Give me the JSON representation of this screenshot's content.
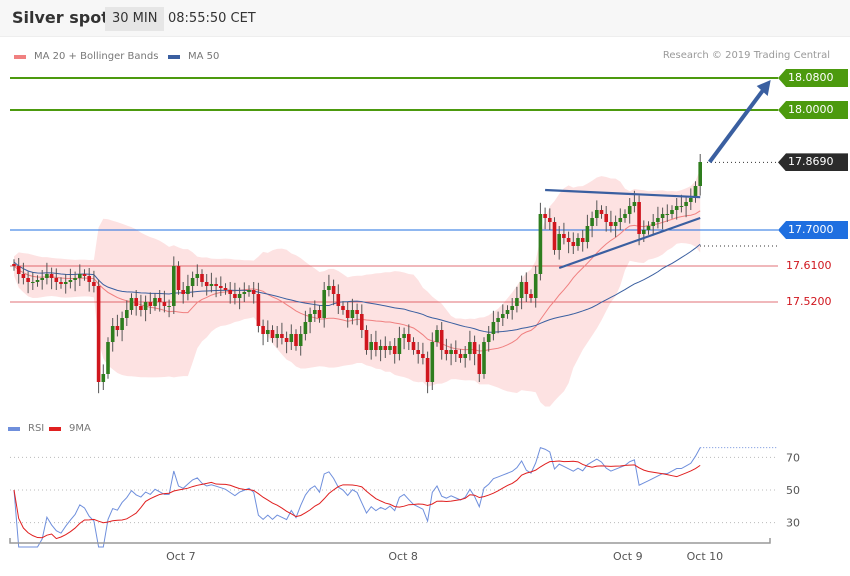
{
  "header": {
    "title": "Silver spot",
    "timeframe": "30 MIN",
    "time": "08:55:50 CET"
  },
  "legend": {
    "bollinger": "MA 20 + Bollinger Bands",
    "ma50": "MA 50",
    "rsi": "RSI",
    "rsi_ma": "9MA"
  },
  "credit": "Research © 2019 Trading Central",
  "colors": {
    "up": "#2e7d1e",
    "down": "#d0161e",
    "band": "#fde2e2",
    "ma20": "#f08080",
    "ma50": "#3a5fa0",
    "target": "#4c9a0e",
    "pivot": "#1f6fe0",
    "support": "#d0161e",
    "current": "#2b2b2b",
    "rsi": "#6f8fdc",
    "rsi_ma": "#e02020"
  },
  "chart_data": [
    {
      "type": "candlestick",
      "title": "Silver spot",
      "interval": "30 MIN",
      "closes": [
        17.61,
        17.59,
        17.58,
        17.57,
        17.57,
        17.575,
        17.58,
        17.59,
        17.58,
        17.57,
        17.565,
        17.57,
        17.575,
        17.58,
        17.59,
        17.585,
        17.57,
        17.56,
        17.32,
        17.34,
        17.42,
        17.46,
        17.45,
        17.48,
        17.5,
        17.53,
        17.51,
        17.5,
        17.52,
        17.51,
        17.53,
        17.52,
        17.51,
        17.51,
        17.61,
        17.55,
        17.54,
        17.56,
        17.58,
        17.59,
        17.57,
        17.56,
        17.565,
        17.56,
        17.555,
        17.55,
        17.54,
        17.53,
        17.54,
        17.545,
        17.55,
        17.54,
        17.46,
        17.44,
        17.45,
        17.43,
        17.44,
        17.43,
        17.42,
        17.44,
        17.41,
        17.44,
        17.47,
        17.49,
        17.5,
        17.48,
        17.55,
        17.56,
        17.54,
        17.51,
        17.5,
        17.48,
        17.5,
        17.49,
        17.45,
        17.4,
        17.42,
        17.4,
        17.41,
        17.4,
        17.41,
        17.39,
        17.43,
        17.44,
        17.42,
        17.4,
        17.39,
        17.38,
        17.32,
        17.42,
        17.45,
        17.4,
        17.39,
        17.4,
        17.39,
        17.38,
        17.39,
        17.42,
        17.39,
        17.34,
        17.42,
        17.44,
        17.47,
        17.48,
        17.49,
        17.5,
        17.51,
        17.53,
        17.57,
        17.54,
        17.53,
        17.59,
        17.74,
        17.73,
        17.72,
        17.65,
        17.69,
        17.68,
        17.67,
        17.66,
        17.68,
        17.67,
        17.71,
        17.73,
        17.75,
        17.74,
        17.72,
        17.71,
        17.72,
        17.73,
        17.74,
        17.76,
        17.77,
        17.69,
        17.7,
        17.71,
        17.72,
        17.73,
        17.74,
        17.74,
        17.75,
        17.76,
        17.76,
        17.77,
        17.78,
        17.81,
        17.87
      ],
      "levels": [
        {
          "value": "18.0800",
          "price": 18.08,
          "kind": "target"
        },
        {
          "value": "18.0000",
          "price": 18.0,
          "kind": "target"
        },
        {
          "value": "17.8690",
          "price": 17.869,
          "kind": "current"
        },
        {
          "value": "17.7000",
          "price": 17.7,
          "kind": "pivot"
        },
        {
          "value": "17.6100",
          "price": 17.61,
          "kind": "support"
        },
        {
          "value": "17.5200",
          "price": 17.52,
          "kind": "support"
        }
      ],
      "trendlines": [
        {
          "from": [
            113,
            17.8
          ],
          "to": [
            146,
            17.782
          ]
        },
        {
          "from": [
            116,
            17.605
          ],
          "to": [
            146,
            17.73
          ]
        }
      ],
      "arrow": {
        "from": [
          148,
          17.87
        ],
        "to": [
          161,
          18.075
        ]
      },
      "overlays": [
        "MA 20 + Bollinger Bands",
        "MA 50"
      ]
    },
    {
      "type": "line",
      "series": [
        {
          "name": "RSI"
        },
        {
          "name": "9MA"
        }
      ],
      "ylim": [
        15,
        80
      ],
      "y_ticks": [
        "70",
        "50",
        "30"
      ],
      "x_ticks": [
        {
          "label": "Oct 7",
          "at_index": 35.5
        },
        {
          "label": "Oct 8",
          "at_index": 82.8
        },
        {
          "label": "Oct 9",
          "at_index": 130.6
        },
        {
          "label": "Oct 10",
          "at_index": 147
        }
      ]
    }
  ]
}
